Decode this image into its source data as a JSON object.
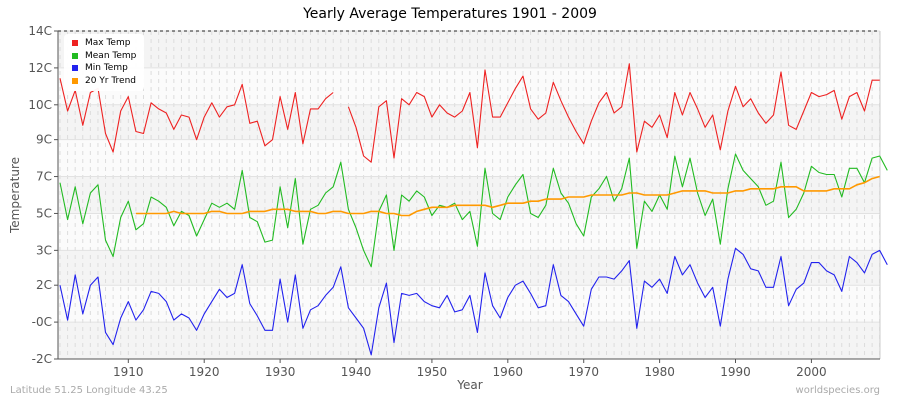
{
  "title": "Yearly Average Temperatures 1901 - 2009",
  "axes": {
    "ylabel": "Temperature",
    "xlabel": "Year",
    "yticks": [
      {
        "label": "14C",
        "value": 14.0
      },
      {
        "label": "12C",
        "value": 12.2
      },
      {
        "label": "10C",
        "value": 10.4
      },
      {
        "label": "9C",
        "value": 8.7
      },
      {
        "label": "7C",
        "value": 6.9
      },
      {
        "label": "5C",
        "value": 5.1
      },
      {
        "label": "3C",
        "value": 3.3
      },
      {
        "label": "2C",
        "value": 1.6
      },
      {
        "label": "-0C",
        "value": -0.2
      },
      {
        "label": "-2C",
        "value": -2.0
      }
    ],
    "xticks": [
      "1910",
      "1920",
      "1930",
      "1940",
      "1950",
      "1960",
      "1970",
      "1980",
      "1990",
      "2000"
    ]
  },
  "legend": {
    "items": [
      {
        "label": "Max Temp",
        "color": "#ee2222"
      },
      {
        "label": "Mean Temp",
        "color": "#22bb22"
      },
      {
        "label": "Min Temp",
        "color": "#2222ee"
      },
      {
        "label": "20 Yr Trend",
        "color": "#ff9900"
      }
    ]
  },
  "footer": {
    "location": "Latitude 51.25 Longitude 43.25",
    "source": "worldspecies.org"
  },
  "chart_data": {
    "type": "line",
    "title": "Yearly Average Temperatures 1901 - 2009",
    "xlabel": "Year",
    "ylabel": "Temperature",
    "ylim": [
      -2,
      14
    ],
    "xlim": [
      1901,
      2009
    ],
    "grid": true,
    "legend_position": "top-left",
    "x_start": 1901,
    "series": [
      {
        "name": "Max Temp",
        "color": "#ee2222",
        "values": [
          11.7,
          10.1,
          11.1,
          9.4,
          11.0,
          11.2,
          9.0,
          8.1,
          10.1,
          10.8,
          9.1,
          9.0,
          10.5,
          10.2,
          10.0,
          9.2,
          9.9,
          9.8,
          8.7,
          9.8,
          10.5,
          9.8,
          10.3,
          10.4,
          11.4,
          9.5,
          9.6,
          8.4,
          8.7,
          10.8,
          9.2,
          11.0,
          8.5,
          10.2,
          10.2,
          10.7,
          11.0,
          null,
          10.3,
          9.3,
          7.9,
          7.6,
          10.3,
          10.6,
          7.8,
          10.7,
          10.4,
          11.0,
          10.8,
          9.8,
          10.4,
          10.0,
          9.8,
          10.1,
          11.0,
          8.3,
          12.1,
          9.8,
          9.8,
          10.5,
          11.2,
          11.8,
          10.2,
          9.7,
          10.0,
          11.5,
          10.6,
          9.8,
          9.1,
          8.5,
          9.6,
          10.5,
          11.0,
          10.0,
          10.3,
          12.4,
          8.1,
          9.6,
          9.3,
          9.9,
          8.8,
          11.0,
          9.9,
          11.0,
          10.2,
          9.3,
          9.9,
          8.2,
          10.1,
          11.3,
          10.3,
          10.7,
          10.0,
          9.5,
          9.9,
          12.0,
          9.4,
          9.2,
          10.1,
          11.0,
          10.8,
          10.9,
          11.1,
          9.7,
          10.8,
          11.0,
          10.1,
          11.6,
          11.6
        ]
      },
      {
        "name": "Mean Temp",
        "color": "#22bb22",
        "values": [
          6.6,
          4.8,
          6.4,
          4.6,
          6.1,
          6.5,
          3.8,
          3.0,
          4.9,
          5.7,
          4.3,
          4.6,
          5.9,
          5.7,
          5.4,
          4.5,
          5.2,
          5.0,
          4.0,
          4.8,
          5.6,
          5.4,
          5.6,
          5.3,
          7.2,
          4.9,
          4.7,
          3.7,
          3.8,
          6.4,
          4.4,
          6.8,
          3.6,
          5.3,
          5.5,
          6.1,
          6.4,
          7.6,
          5.3,
          4.4,
          3.3,
          2.5,
          5.2,
          6.0,
          3.3,
          6.0,
          5.7,
          6.2,
          5.9,
          5.0,
          5.5,
          5.4,
          5.6,
          4.8,
          5.2,
          3.5,
          7.3,
          5.1,
          4.8,
          5.9,
          6.5,
          7.0,
          5.1,
          4.9,
          5.5,
          7.3,
          6.1,
          5.6,
          4.6,
          4.0,
          5.9,
          6.3,
          6.9,
          5.7,
          6.3,
          7.8,
          3.4,
          5.7,
          5.2,
          6.0,
          5.3,
          7.9,
          6.4,
          7.8,
          6.1,
          5.0,
          5.8,
          3.6,
          6.3,
          8.0,
          7.2,
          6.8,
          6.4,
          5.5,
          5.7,
          7.6,
          4.9,
          5.3,
          6.1,
          7.4,
          7.1,
          7.0,
          7.0,
          5.9,
          7.3,
          7.3,
          6.6,
          7.8,
          7.9,
          7.2
        ]
      },
      {
        "name": "Min Temp",
        "color": "#2222ee",
        "values": [
          1.6,
          -0.1,
          2.1,
          0.2,
          1.6,
          2.0,
          -0.7,
          -1.3,
          0.0,
          0.8,
          -0.1,
          0.4,
          1.3,
          1.2,
          0.8,
          -0.1,
          0.2,
          0.0,
          -0.6,
          0.2,
          0.8,
          1.4,
          1.0,
          1.2,
          2.6,
          0.7,
          0.1,
          -0.6,
          -0.6,
          1.9,
          -0.2,
          2.1,
          -0.5,
          0.4,
          0.6,
          1.1,
          1.5,
          2.5,
          0.5,
          0.0,
          -0.5,
          -1.8,
          0.5,
          1.7,
          -1.2,
          1.2,
          1.1,
          1.2,
          0.8,
          0.6,
          0.5,
          1.1,
          0.3,
          0.4,
          1.1,
          -0.7,
          2.2,
          0.6,
          0.0,
          1.0,
          1.6,
          1.8,
          1.2,
          0.5,
          0.6,
          2.6,
          1.1,
          0.8,
          0.2,
          -0.4,
          1.4,
          2.0,
          2.0,
          1.9,
          2.3,
          2.8,
          -0.5,
          1.8,
          1.5,
          1.9,
          1.2,
          3.0,
          2.1,
          2.6,
          1.7,
          1.0,
          1.5,
          -0.4,
          1.9,
          3.4,
          3.1,
          2.4,
          2.3,
          1.5,
          1.5,
          3.0,
          0.6,
          1.4,
          1.7,
          2.7,
          2.7,
          2.3,
          2.1,
          1.3,
          3.0,
          2.7,
          2.2,
          3.1,
          3.3,
          2.6
        ]
      },
      {
        "name": "20 Yr Trend",
        "color": "#ff9900",
        "x_start": 1911,
        "values": [
          5.1,
          5.1,
          5.1,
          5.1,
          5.1,
          5.2,
          5.1,
          5.1,
          5.1,
          5.1,
          5.2,
          5.2,
          5.1,
          5.1,
          5.1,
          5.2,
          5.2,
          5.2,
          5.3,
          5.3,
          5.3,
          5.2,
          5.2,
          5.2,
          5.1,
          5.1,
          5.2,
          5.2,
          5.1,
          5.1,
          5.1,
          5.2,
          5.2,
          5.1,
          5.1,
          5.0,
          5.0,
          5.2,
          5.3,
          5.4,
          5.4,
          5.4,
          5.5,
          5.5,
          5.5,
          5.5,
          5.5,
          5.4,
          5.5,
          5.6,
          5.6,
          5.6,
          5.7,
          5.7,
          5.8,
          5.8,
          5.8,
          5.9,
          5.9,
          5.9,
          6.0,
          6.0,
          6.0,
          6.0,
          6.0,
          6.1,
          6.1,
          6.0,
          6.0,
          6.0,
          6.0,
          6.1,
          6.2,
          6.2,
          6.2,
          6.2,
          6.1,
          6.1,
          6.1,
          6.2,
          6.2,
          6.3,
          6.3,
          6.3,
          6.3,
          6.4,
          6.4,
          6.4,
          6.2,
          6.2,
          6.2,
          6.2,
          6.3,
          6.3,
          6.3,
          6.5,
          6.6,
          6.8,
          6.9
        ]
      }
    ]
  }
}
